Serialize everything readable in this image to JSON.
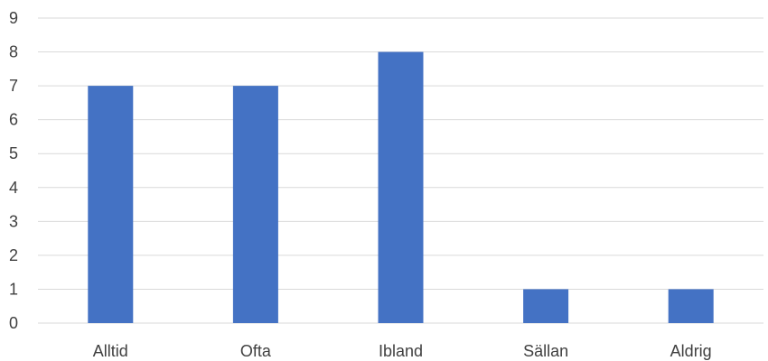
{
  "chart_data": {
    "type": "bar",
    "title": "",
    "xlabel": "",
    "ylabel": "",
    "categories": [
      "Alltid",
      "Ofta",
      "Ibland",
      "Sällan",
      "Aldrig"
    ],
    "values": [
      7,
      7,
      8,
      1,
      1
    ],
    "ylim": [
      0,
      9
    ],
    "yticks": [
      0,
      1,
      2,
      3,
      4,
      5,
      6,
      7,
      8,
      9
    ],
    "grid": true,
    "legend": "none",
    "colors": {
      "bar": "#4472c4",
      "grid": "#d9d9d9",
      "text": "#404040"
    }
  }
}
